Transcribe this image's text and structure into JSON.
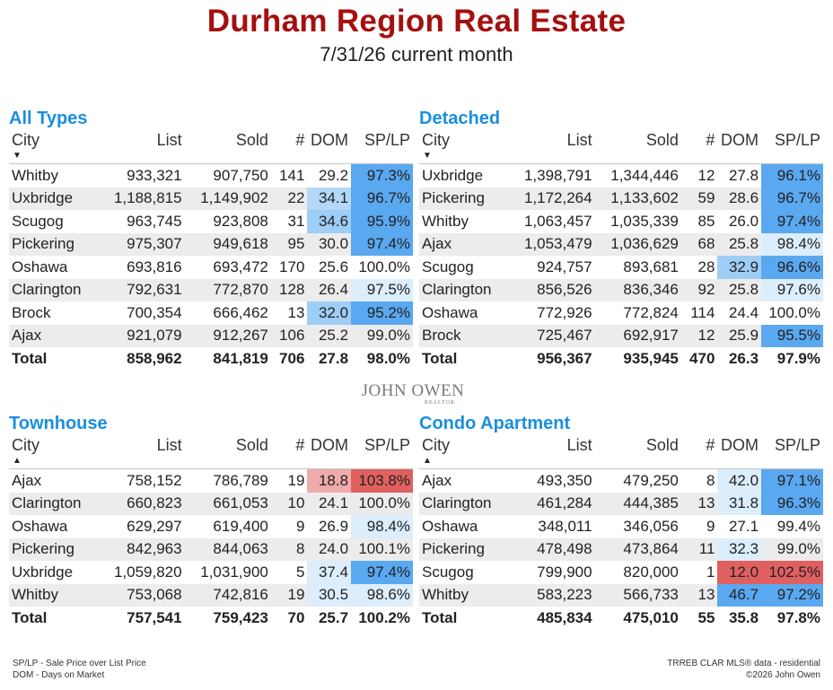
{
  "header": {
    "title": "Durham Region Real Estate",
    "subtitle_date": "7/31/26",
    "subtitle_suffix": " current month"
  },
  "columns": [
    "City",
    "List",
    "Sold",
    "#",
    "DOM",
    "SP/LP"
  ],
  "colors": {
    "title": "#a50f0f",
    "section_title": "#1a8fe0",
    "high_blue": "#5aa8f0",
    "mid_blue": "#9ecdf6",
    "low_blue": "#dcedfc",
    "high_red": "#e06060",
    "mid_red": "#efaaaa"
  },
  "sections": [
    {
      "title": "All Types",
      "sort": "desc",
      "rows": [
        {
          "city": "Whitby",
          "list": "933,321",
          "sold": "907,750",
          "n": "141",
          "dom": "29.2",
          "splp": "97.3%",
          "splp_color": "#5aa8f0",
          "dom_color": ""
        },
        {
          "city": "Uxbridge",
          "list": "1,188,815",
          "sold": "1,149,902",
          "n": "22",
          "dom": "34.1",
          "splp": "96.7%",
          "splp_color": "#5aa8f0",
          "dom_color": "#b3d8f9"
        },
        {
          "city": "Scugog",
          "list": "963,745",
          "sold": "923,808",
          "n": "31",
          "dom": "34.6",
          "splp": "95.9%",
          "splp_color": "#5aa8f0",
          "dom_color": "#9ecdf6"
        },
        {
          "city": "Pickering",
          "list": "975,307",
          "sold": "949,618",
          "n": "95",
          "dom": "30.0",
          "splp": "97.4%",
          "splp_color": "#5aa8f0",
          "dom_color": ""
        },
        {
          "city": "Oshawa",
          "list": "693,816",
          "sold": "693,472",
          "n": "170",
          "dom": "25.6",
          "splp": "100.0%",
          "splp_color": "",
          "dom_color": ""
        },
        {
          "city": "Clarington",
          "list": "792,631",
          "sold": "772,870",
          "n": "128",
          "dom": "26.4",
          "splp": "97.5%",
          "splp_color": "#dcedfc",
          "dom_color": ""
        },
        {
          "city": "Brock",
          "list": "700,354",
          "sold": "666,462",
          "n": "13",
          "dom": "32.0",
          "splp": "95.2%",
          "splp_color": "#5aa8f0",
          "dom_color": "#9ecdf6"
        },
        {
          "city": "Ajax",
          "list": "921,079",
          "sold": "912,267",
          "n": "106",
          "dom": "25.2",
          "splp": "99.0%",
          "splp_color": "",
          "dom_color": ""
        }
      ],
      "total": {
        "city": "Total",
        "list": "858,962",
        "sold": "841,819",
        "n": "706",
        "dom": "27.8",
        "splp": "98.0%"
      }
    },
    {
      "title": "Detached",
      "sort": "desc",
      "rows": [
        {
          "city": "Uxbridge",
          "list": "1,398,791",
          "sold": "1,344,446",
          "n": "12",
          "dom": "27.8",
          "splp": "96.1%",
          "splp_color": "#5aa8f0",
          "dom_color": ""
        },
        {
          "city": "Pickering",
          "list": "1,172,264",
          "sold": "1,133,602",
          "n": "59",
          "dom": "28.6",
          "splp": "96.7%",
          "splp_color": "#5aa8f0",
          "dom_color": ""
        },
        {
          "city": "Whitby",
          "list": "1,063,457",
          "sold": "1,035,339",
          "n": "85",
          "dom": "26.0",
          "splp": "97.4%",
          "splp_color": "#5aa8f0",
          "dom_color": ""
        },
        {
          "city": "Ajax",
          "list": "1,053,479",
          "sold": "1,036,629",
          "n": "68",
          "dom": "25.8",
          "splp": "98.4%",
          "splp_color": "#dcedfc",
          "dom_color": ""
        },
        {
          "city": "Scugog",
          "list": "924,757",
          "sold": "893,681",
          "n": "28",
          "dom": "32.9",
          "splp": "96.6%",
          "splp_color": "#5aa8f0",
          "dom_color": "#9ecdf6"
        },
        {
          "city": "Clarington",
          "list": "856,526",
          "sold": "836,346",
          "n": "92",
          "dom": "25.8",
          "splp": "97.6%",
          "splp_color": "#dcedfc",
          "dom_color": ""
        },
        {
          "city": "Oshawa",
          "list": "772,926",
          "sold": "772,824",
          "n": "114",
          "dom": "24.4",
          "splp": "100.0%",
          "splp_color": "",
          "dom_color": ""
        },
        {
          "city": "Brock",
          "list": "725,467",
          "sold": "692,917",
          "n": "12",
          "dom": "25.9",
          "splp": "95.5%",
          "splp_color": "#5aa8f0",
          "dom_color": ""
        }
      ],
      "total": {
        "city": "Total",
        "list": "956,367",
        "sold": "935,945",
        "n": "470",
        "dom": "26.3",
        "splp": "97.9%"
      }
    },
    {
      "title": "Townhouse",
      "sort": "asc",
      "rows": [
        {
          "city": "Ajax",
          "list": "758,152",
          "sold": "786,789",
          "n": "19",
          "dom": "18.8",
          "splp": "103.8%",
          "splp_color": "#e06060",
          "dom_color": "#efaaaa"
        },
        {
          "city": "Clarington",
          "list": "660,823",
          "sold": "661,053",
          "n": "10",
          "dom": "24.1",
          "splp": "100.0%",
          "splp_color": "",
          "dom_color": ""
        },
        {
          "city": "Oshawa",
          "list": "629,297",
          "sold": "619,400",
          "n": "9",
          "dom": "26.9",
          "splp": "98.4%",
          "splp_color": "#dcedfc",
          "dom_color": ""
        },
        {
          "city": "Pickering",
          "list": "842,963",
          "sold": "844,063",
          "n": "8",
          "dom": "24.0",
          "splp": "100.1%",
          "splp_color": "",
          "dom_color": ""
        },
        {
          "city": "Uxbridge",
          "list": "1,059,820",
          "sold": "1,031,900",
          "n": "5",
          "dom": "37.4",
          "splp": "97.4%",
          "splp_color": "#5aa8f0",
          "dom_color": "#dcedfc"
        },
        {
          "city": "Whitby",
          "list": "753,068",
          "sold": "742,816",
          "n": "19",
          "dom": "30.5",
          "splp": "98.6%",
          "splp_color": "#dcedfc",
          "dom_color": "#dcedfc"
        }
      ],
      "total": {
        "city": "Total",
        "list": "757,541",
        "sold": "759,423",
        "n": "70",
        "dom": "25.7",
        "splp": "100.2%"
      }
    },
    {
      "title": "Condo Apartment",
      "sort": "asc",
      "rows": [
        {
          "city": "Ajax",
          "list": "493,350",
          "sold": "479,250",
          "n": "8",
          "dom": "42.0",
          "splp": "97.1%",
          "splp_color": "#5aa8f0",
          "dom_color": "#dcedfc"
        },
        {
          "city": "Clarington",
          "list": "461,284",
          "sold": "444,385",
          "n": "13",
          "dom": "31.8",
          "splp": "96.3%",
          "splp_color": "#5aa8f0",
          "dom_color": "#dcedfc"
        },
        {
          "city": "Oshawa",
          "list": "348,011",
          "sold": "346,056",
          "n": "9",
          "dom": "27.1",
          "splp": "99.4%",
          "splp_color": "",
          "dom_color": ""
        },
        {
          "city": "Pickering",
          "list": "478,498",
          "sold": "473,864",
          "n": "11",
          "dom": "32.3",
          "splp": "99.0%",
          "splp_color": "",
          "dom_color": "#dcedfc"
        },
        {
          "city": "Scugog",
          "list": "799,900",
          "sold": "820,000",
          "n": "1",
          "dom": "12.0",
          "splp": "102.5%",
          "splp_color": "#e06060",
          "dom_color": "#e06060"
        },
        {
          "city": "Whitby",
          "list": "583,223",
          "sold": "566,733",
          "n": "13",
          "dom": "46.7",
          "splp": "97.2%",
          "splp_color": "#5aa8f0",
          "dom_color": "#5aa8f0"
        }
      ],
      "total": {
        "city": "Total",
        "list": "485,834",
        "sold": "475,010",
        "n": "55",
        "dom": "35.8",
        "splp": "97.8%"
      }
    }
  ],
  "logo": {
    "name": "JOHN OWEN",
    "sub": "REALTOR"
  },
  "footer": {
    "left_line1": "SP/LP - Sale Price over List Price",
    "left_line2": "DOM - Days on Market",
    "right_line1": "TRREB CLAR MLS® data - residential",
    "right_line2": "©2026 John Owen"
  }
}
